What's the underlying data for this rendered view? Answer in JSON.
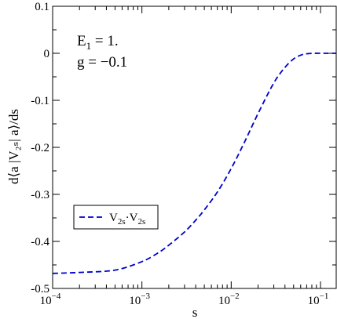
{
  "chart_data": {
    "type": "line",
    "xlabel": "s",
    "ylabel": "d⟨a |V₂ₛ| a⟩/ds",
    "xscale": "log",
    "xlim": [
      0.0001,
      0.15
    ],
    "ylim": [
      -0.5,
      0.1
    ],
    "x_ticks": [
      {
        "value": 0.0001,
        "base": "10",
        "exp": "−4"
      },
      {
        "value": 0.001,
        "base": "10",
        "exp": "−3"
      },
      {
        "value": 0.01,
        "base": "10",
        "exp": "−2"
      },
      {
        "value": 0.1,
        "base": "10",
        "exp": "−1"
      }
    ],
    "y_ticks": [
      {
        "value": 0.1,
        "label": "0.1"
      },
      {
        "value": 0,
        "label": "0"
      },
      {
        "value": -0.1,
        "label": "-0.1"
      },
      {
        "value": -0.2,
        "label": "-0.2"
      },
      {
        "value": -0.3,
        "label": "-0.3"
      },
      {
        "value": -0.4,
        "label": "-0.4"
      },
      {
        "value": -0.5,
        "label": "-0.5"
      }
    ],
    "annotations": {
      "line1_main": "E",
      "line1_sub": "1",
      "line1_rest": " = 1.",
      "line2": "g = −0.1"
    },
    "legend": {
      "placement": "left-middle",
      "label_main1": "V",
      "label_sub1": "2s",
      "label_mid": "·V",
      "label_sub2": "2s"
    },
    "series": [
      {
        "name": "V2s·V2s",
        "color": "#0000cc",
        "style": "dashed",
        "x": [
          0.0001,
          0.0002,
          0.0005,
          0.001,
          0.0015,
          0.002,
          0.003,
          0.004,
          0.005,
          0.007,
          0.01,
          0.014,
          0.02,
          0.03,
          0.04,
          0.05,
          0.06,
          0.07,
          0.085,
          0.1,
          0.12,
          0.15
        ],
        "y": [
          -0.468,
          -0.466,
          -0.461,
          -0.443,
          -0.425,
          -0.408,
          -0.38,
          -0.355,
          -0.333,
          -0.295,
          -0.245,
          -0.19,
          -0.128,
          -0.063,
          -0.03,
          -0.012,
          -0.004,
          -0.001,
          0.0,
          0.0,
          0.0,
          0.0
        ]
      }
    ]
  }
}
